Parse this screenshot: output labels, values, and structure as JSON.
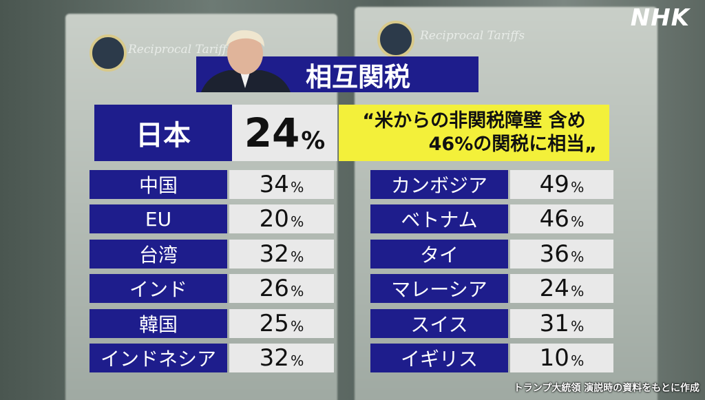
{
  "logo": "NHK",
  "title": "相互関税",
  "background": [
    "Reciprocal Tariffs",
    "Reciprocal Tariffs"
  ],
  "featured": {
    "country": "日本",
    "rate": "24",
    "unit": "%",
    "quote": [
      "“米からの非関税障壁 含め",
      "46%の関税に相当„"
    ]
  },
  "left": [
    {
      "country": "中国",
      "rate": "34",
      "unit": "%"
    },
    {
      "country": "EU",
      "rate": "20",
      "unit": "%"
    },
    {
      "country": "台湾",
      "rate": "32",
      "unit": "%"
    },
    {
      "country": "インド",
      "rate": "26",
      "unit": "%"
    },
    {
      "country": "韓国",
      "rate": "25",
      "unit": "%"
    },
    {
      "country": "インドネシア",
      "rate": "32",
      "unit": "%"
    }
  ],
  "right": [
    {
      "country": "カンボジア",
      "rate": "49",
      "unit": "%"
    },
    {
      "country": "ベトナム",
      "rate": "46",
      "unit": "%"
    },
    {
      "country": "タイ",
      "rate": "36",
      "unit": "%"
    },
    {
      "country": "マレーシア",
      "rate": "24",
      "unit": "%"
    },
    {
      "country": "スイス",
      "rate": "31",
      "unit": "%"
    },
    {
      "country": "イギリス",
      "rate": "10",
      "unit": "%"
    }
  ],
  "source": "トランプ大統領 演説時の資料をもとに作成"
}
